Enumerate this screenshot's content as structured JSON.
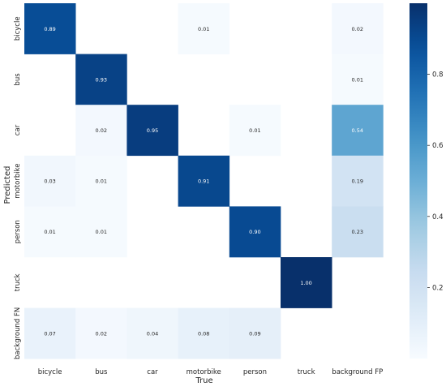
{
  "chart_data": {
    "type": "heatmap",
    "xlabel": "True",
    "ylabel": "Predicted",
    "x_categories": [
      "bicycle",
      "bus",
      "car",
      "motorbike",
      "person",
      "truck",
      "background FP"
    ],
    "y_categories": [
      "bicycle",
      "bus",
      "car",
      "motorbike",
      "person",
      "truck",
      "background FN"
    ],
    "values": [
      [
        0.89,
        null,
        null,
        0.01,
        null,
        null,
        0.02
      ],
      [
        null,
        0.93,
        null,
        null,
        null,
        null,
        0.01
      ],
      [
        null,
        0.02,
        0.95,
        null,
        0.01,
        null,
        0.54
      ],
      [
        0.03,
        0.01,
        null,
        0.91,
        null,
        null,
        0.19
      ],
      [
        0.01,
        0.01,
        null,
        null,
        0.9,
        null,
        0.23
      ],
      [
        null,
        null,
        null,
        null,
        null,
        1.0,
        null
      ],
      [
        0.07,
        0.02,
        0.04,
        0.08,
        0.09,
        null,
        null
      ]
    ],
    "value_format": "0.00",
    "colormap": "Blues",
    "vmin": 0.0,
    "vmax": 1.0,
    "colorbar_ticks": [
      0.2,
      0.4,
      0.6,
      0.8
    ],
    "colorbar_tick_labels": [
      "0.2",
      "0.4",
      "0.6",
      "0.8"
    ],
    "grid": false,
    "colors": {
      "light": "#f7fbff",
      "dark": "#08306b",
      "text_on_light": "#262626",
      "text_on_dark": "#ffffff"
    }
  }
}
